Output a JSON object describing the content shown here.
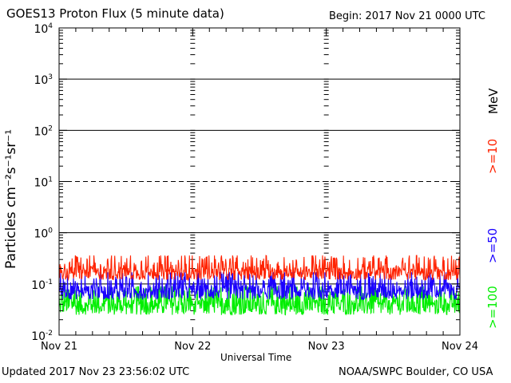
{
  "header": {
    "title": "GOES13 Proton Flux (5 minute data)",
    "begin": "Begin: 2017 Nov 21 0000 UTC"
  },
  "footer": {
    "updated": "Updated 2017 Nov 23 23:56:02 UTC",
    "credit": "NOAA/SWPC Boulder, CO USA"
  },
  "colors": {
    "ge10": "#ff2200",
    "ge50": "#1a00ff",
    "ge100": "#00ee00",
    "axis": "#000000"
  },
  "chart_data": {
    "type": "line",
    "xlabel": "Universal Time",
    "ylabel": "Particles cm⁻²s⁻¹sr⁻¹",
    "yscale": "log",
    "ylim": [
      0.01,
      10000
    ],
    "xlim": [
      "2017-11-21 00:00",
      "2017-11-24 00:00"
    ],
    "x_ticks": [
      "Nov 21",
      "Nov 22",
      "Nov 23",
      "Nov 24"
    ],
    "y_ticks": [
      {
        "base": "10",
        "exp": "-2"
      },
      {
        "base": "10",
        "exp": "-1"
      },
      {
        "base": "10",
        "exp": "0"
      },
      {
        "base": "10",
        "exp": "1"
      },
      {
        "base": "10",
        "exp": "2"
      },
      {
        "base": "10",
        "exp": "3"
      },
      {
        "base": "10",
        "exp": "4"
      }
    ],
    "reference_lines": [
      {
        "value": 0.1,
        "style": "solid"
      },
      {
        "value": 1,
        "style": "solid"
      },
      {
        "value": 10,
        "style": "dashed"
      },
      {
        "value": 100,
        "style": "solid"
      },
      {
        "value": 1000,
        "style": "solid"
      }
    ],
    "energy_unit": "MeV",
    "series": [
      {
        "name": ">=10",
        "color": "#ff2200",
        "typical_range": [
          0.12,
          0.32
        ]
      },
      {
        "name": ">=50",
        "color": "#1a00ff",
        "typical_range": [
          0.05,
          0.15
        ]
      },
      {
        "name": ">=100",
        "color": "#00ee00",
        "typical_range": [
          0.025,
          0.08
        ]
      }
    ]
  }
}
